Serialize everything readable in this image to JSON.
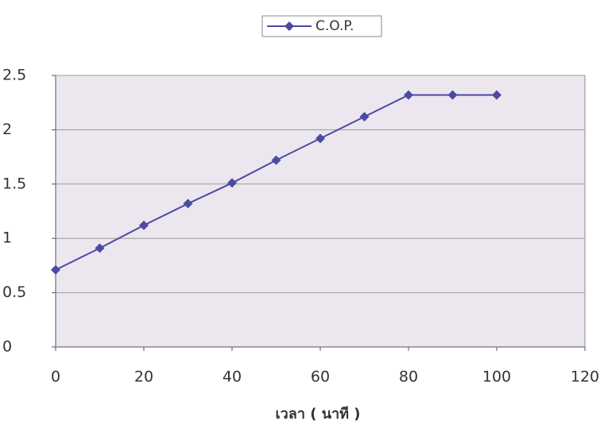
{
  "chart_data": {
    "type": "line",
    "x_label": "เวลา ( นาที )",
    "x": [
      0,
      10,
      20,
      30,
      40,
      50,
      60,
      70,
      80,
      90,
      100
    ],
    "series": [
      {
        "name": "C.O.P.",
        "color": "#4b4ba3",
        "values": [
          0.71,
          0.91,
          1.12,
          1.32,
          1.51,
          1.72,
          1.92,
          2.12,
          2.32,
          2.32,
          2.32
        ]
      }
    ],
    "xlim": [
      0,
      120
    ],
    "xticks": [
      0,
      20,
      40,
      60,
      80,
      100,
      120
    ],
    "ylim": [
      0,
      2.5
    ],
    "yticks": [
      0,
      0.5,
      1,
      1.5,
      2,
      2.5
    ],
    "grid": true,
    "legend": "top"
  }
}
